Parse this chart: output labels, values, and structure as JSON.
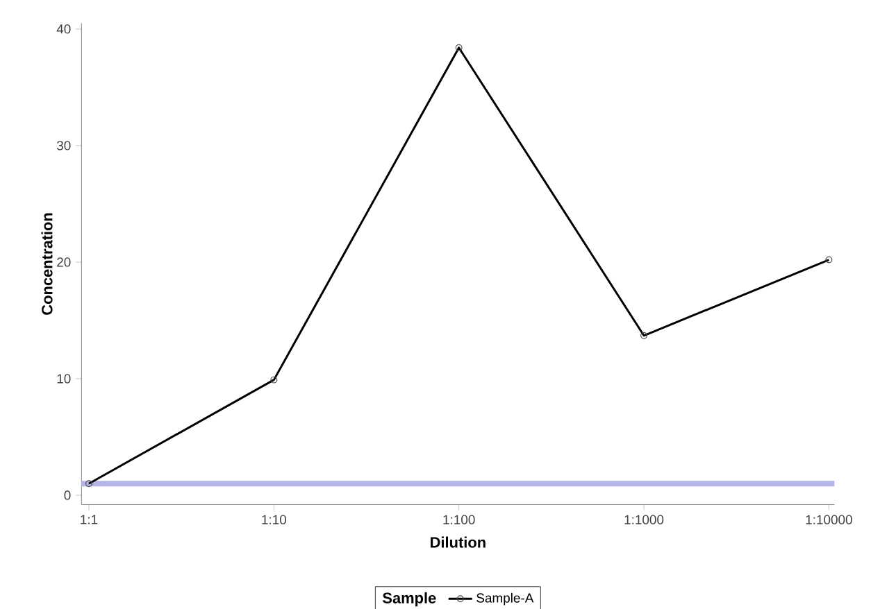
{
  "chart_data": {
    "type": "line",
    "xlabel": "Dilution",
    "ylabel": "Concentration",
    "legend_title": "Sample",
    "categories": [
      "1:1",
      "1:10",
      "1:100",
      "1:1000",
      "1:10000"
    ],
    "series": [
      {
        "name": "Sample-A",
        "color": "#000000",
        "values": [
          1,
          9.9,
          38.4,
          13.7,
          20.2
        ]
      }
    ],
    "marker": "circle",
    "ylim": [
      -0.8,
      40.5
    ],
    "yticks": [
      0,
      10,
      20,
      30,
      40
    ],
    "ref_lines": [
      {
        "axis": "y",
        "value": 1,
        "color": "#b4b4e6"
      }
    ],
    "legend": "bottom",
    "grid": false
  }
}
